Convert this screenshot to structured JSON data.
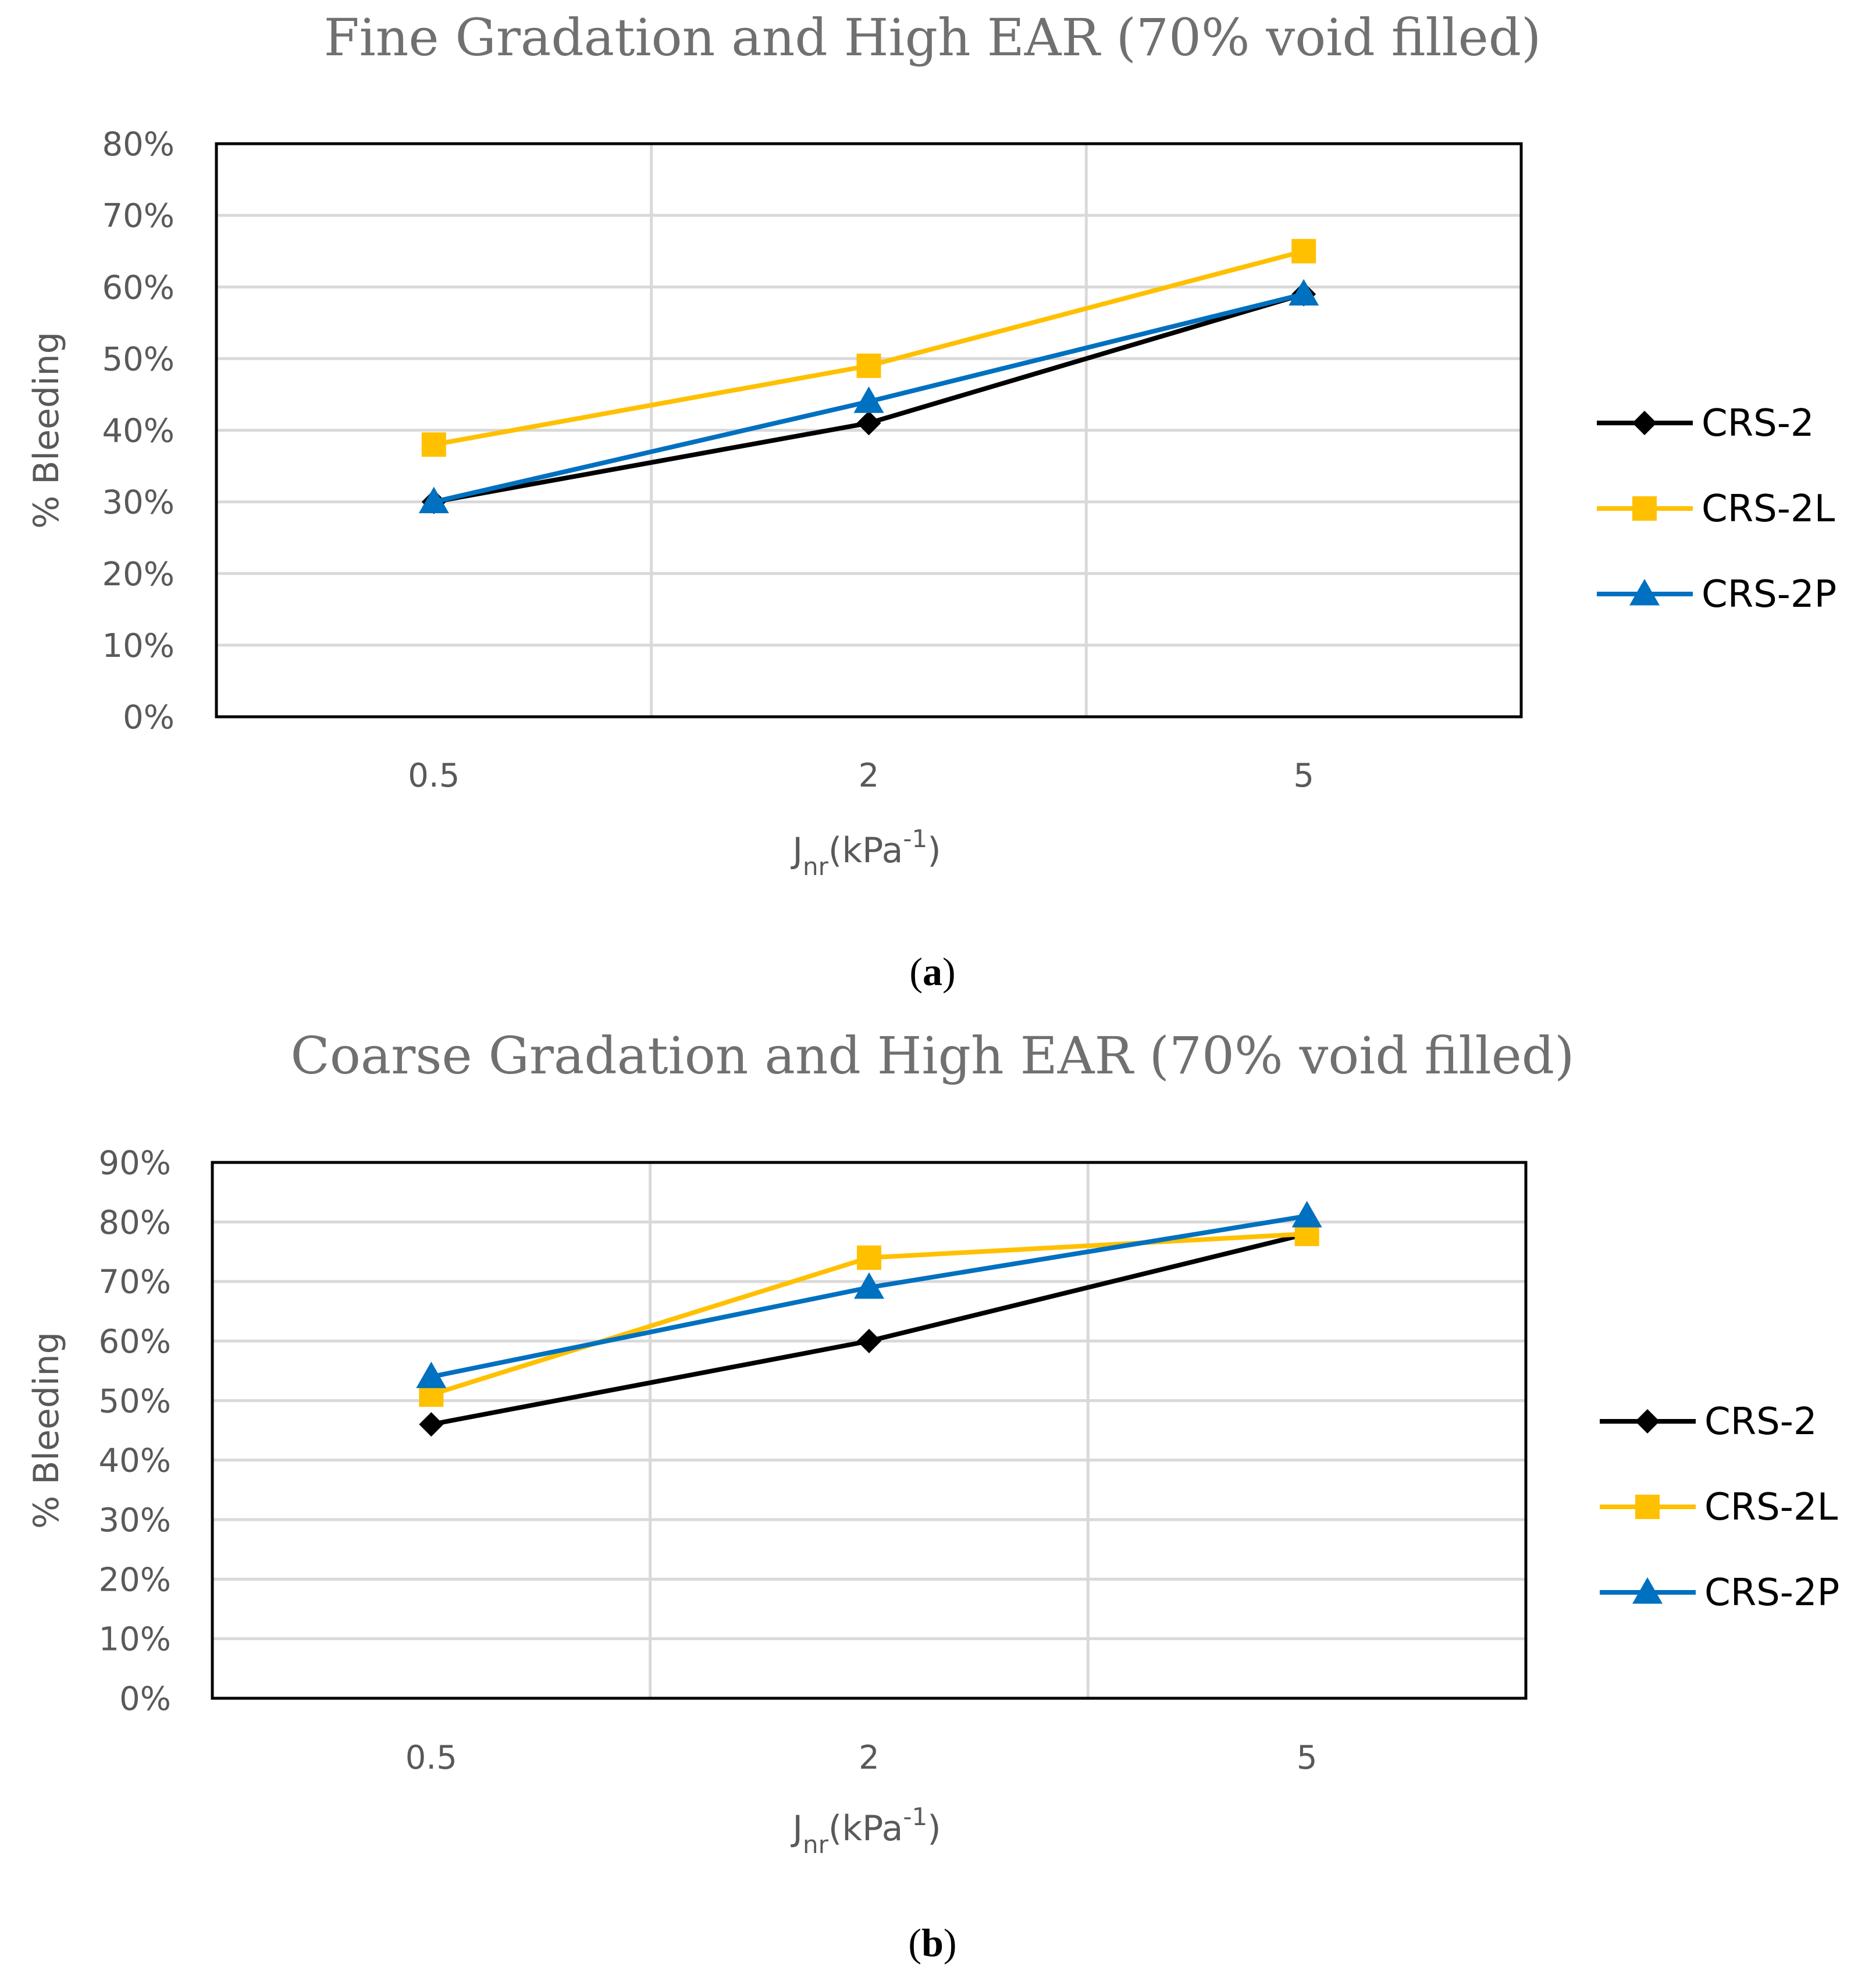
{
  "chart_data": [
    {
      "type": "line",
      "title": "Fine Gradation and High EAR (70% void filled)",
      "panel_label": "a",
      "xlabel": {
        "main": "J",
        "sub": "nr",
        "paren_open": "(kPa",
        "sup": "-1",
        "paren_close": ")"
      },
      "ylabel": "% Bleeding",
      "categories": [
        "0.5",
        "2",
        "5"
      ],
      "ylim": [
        0,
        0.8
      ],
      "yticks": [
        0,
        0.1,
        0.2,
        0.3,
        0.4,
        0.5,
        0.6,
        0.7,
        0.8
      ],
      "ytick_labels": [
        "0%",
        "10%",
        "20%",
        "30%",
        "40%",
        "50%",
        "60%",
        "70%",
        "80%"
      ],
      "grid": true,
      "legend_position": "right",
      "series": [
        {
          "name": "CRS-2",
          "color": "#000000",
          "marker": "diamond",
          "values": [
            0.3,
            0.41,
            0.59
          ]
        },
        {
          "name": "CRS-2L",
          "color": "#FFC000",
          "marker": "square",
          "values": [
            0.38,
            0.49,
            0.65
          ]
        },
        {
          "name": "CRS-2P",
          "color": "#0070C0",
          "marker": "triangle",
          "values": [
            0.3,
            0.44,
            0.59
          ]
        }
      ]
    },
    {
      "type": "line",
      "title": "Coarse Gradation and High EAR (70% void filled)",
      "panel_label": "b",
      "xlabel": {
        "main": "J",
        "sub": "nr",
        "paren_open": "(kPa",
        "sup": "-1",
        "paren_close": ")"
      },
      "ylabel": "% Bleeding",
      "categories": [
        "0.5",
        "2",
        "5"
      ],
      "ylim": [
        0,
        0.9
      ],
      "yticks": [
        0,
        0.1,
        0.2,
        0.3,
        0.4,
        0.5,
        0.6,
        0.7,
        0.8,
        0.9
      ],
      "ytick_labels": [
        "0%",
        "10%",
        "20%",
        "30%",
        "40%",
        "50%",
        "60%",
        "70%",
        "80%",
        "90%"
      ],
      "grid": true,
      "legend_position": "right",
      "series": [
        {
          "name": "CRS-2",
          "color": "#000000",
          "marker": "diamond",
          "values": [
            0.46,
            0.6,
            0.78
          ]
        },
        {
          "name": "CRS-2L",
          "color": "#FFC000",
          "marker": "square",
          "values": [
            0.51,
            0.74,
            0.78
          ]
        },
        {
          "name": "CRS-2P",
          "color": "#0070C0",
          "marker": "triangle",
          "values": [
            0.54,
            0.69,
            0.81
          ]
        }
      ]
    }
  ]
}
